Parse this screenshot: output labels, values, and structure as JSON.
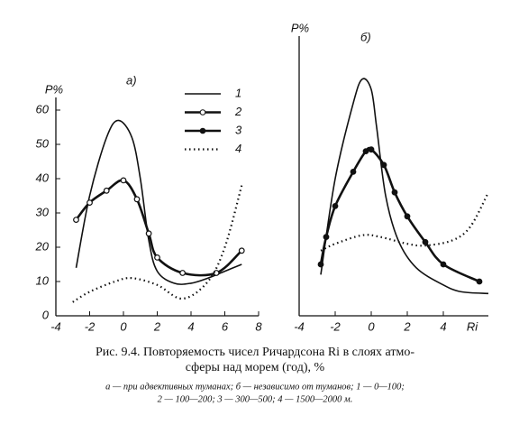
{
  "chart_data": [
    {
      "type": "line",
      "label": "а)",
      "y_label": "Р%",
      "xlim": [
        -4,
        8
      ],
      "xticks": [
        -4,
        -2,
        0,
        2,
        4,
        6,
        8
      ],
      "ylim": [
        0,
        60
      ],
      "yticks": [
        0,
        10,
        20,
        30,
        40,
        50,
        60
      ],
      "legend": [
        {
          "name": "1",
          "style": "thin",
          "marker": "none"
        },
        {
          "name": "2",
          "style": "thick",
          "marker": "open"
        },
        {
          "name": "3",
          "style": "thick",
          "marker": "filled"
        },
        {
          "name": "4",
          "style": "dotted",
          "marker": "none"
        }
      ],
      "series": [
        {
          "name": "1",
          "color": "#111",
          "style": "thin",
          "marker": "none",
          "x": [
            -2.8,
            -2,
            -1,
            -0.3,
            0.5,
            1,
            1.5,
            2,
            3,
            4,
            5,
            6,
            7
          ],
          "values": [
            14,
            35,
            52,
            57,
            52,
            40,
            22,
            13,
            9.5,
            9.5,
            11,
            13,
            15
          ]
        },
        {
          "name": "2",
          "color": "#111",
          "style": "thick",
          "marker": "open",
          "x": [
            -2.8,
            -2,
            -1,
            0,
            0.8,
            1.5,
            2,
            3.5,
            5.5,
            7
          ],
          "values": [
            28,
            33,
            36.5,
            39.5,
            34,
            24,
            17,
            12.5,
            12.5,
            19
          ]
        },
        {
          "name": "4",
          "color": "#111",
          "style": "dotted",
          "marker": "none",
          "x": [
            -3,
            -2,
            -0.5,
            0.5,
            2,
            3.5,
            5,
            6,
            7
          ],
          "values": [
            4,
            7,
            10,
            11,
            9,
            5,
            10,
            20,
            38
          ]
        }
      ]
    },
    {
      "type": "line",
      "label": "б)",
      "y_label": "Р%",
      "x_label": "Ri",
      "xlim": [
        -4,
        6.5
      ],
      "xticks": [
        -4,
        -2,
        0,
        2,
        4
      ],
      "ylim": [
        0,
        80
      ],
      "series": [
        {
          "name": "1",
          "color": "#111",
          "style": "thin",
          "marker": "none",
          "x": [
            -2.8,
            -2,
            -1,
            -0.5,
            0,
            0.3,
            0.8,
            1.5,
            2.5,
            4,
            5,
            6.5
          ],
          "values": [
            12,
            40,
            62,
            69,
            66,
            55,
            35,
            22,
            14,
            9,
            7,
            6.5
          ]
        },
        {
          "name": "3",
          "color": "#111",
          "style": "thick",
          "marker": "filled",
          "x": [
            -2.8,
            -2.5,
            -2,
            -1,
            -0.3,
            0,
            0.7,
            1.3,
            2,
            3,
            4,
            6
          ],
          "values": [
            15,
            23,
            32,
            42,
            48,
            48.5,
            44,
            36,
            29,
            21.5,
            15,
            10
          ]
        },
        {
          "name": "4",
          "color": "#111",
          "style": "dotted",
          "marker": "none",
          "x": [
            -2.8,
            -2,
            -0.5,
            0.5,
            2,
            3,
            4.5,
            5.5,
            6.5
          ],
          "values": [
            19,
            21,
            23.5,
            23,
            21,
            20.5,
            22,
            26,
            36
          ]
        }
      ]
    }
  ],
  "caption": {
    "lines": [
      "Рис. 9.4. Повторяемость чисел Ричардсона Ri в слоях атмо-",
      "сферы над морем (год), %"
    ],
    "notes": [
      "а — при адвективных туманах; б — независимо от туманов; 1 — 0—100;",
      "2 — 100—200; 3 — 300—500; 4 — 1500—2000 м."
    ]
  }
}
